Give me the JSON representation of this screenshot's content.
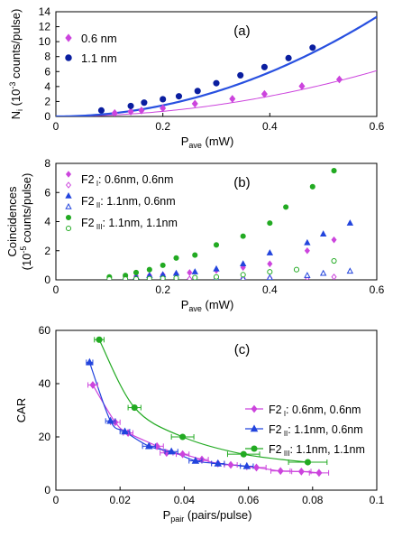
{
  "chart_data": [
    {
      "type": "scatter",
      "panel_label": "(a)",
      "xlabel": "P",
      "xlabel_sub": "ave",
      "xlabel_unit": " (mW)",
      "ylabel": "N",
      "ylabel_sub": "i",
      "ylabel_unit": " (10",
      "ylabel_exp": "-3",
      "ylabel_tail": " counts/pulse)",
      "xlim": [
        0,
        0.6
      ],
      "ylim": [
        0,
        14
      ],
      "xticks": [
        "0",
        "0.2",
        "0.4",
        "0.6"
      ],
      "yticks": [
        "0",
        "2",
        "4",
        "6",
        "8",
        "10",
        "12",
        "14"
      ],
      "legend_position": "top-left",
      "series": [
        {
          "name": "0.6 nm",
          "color": "#cc44dd",
          "marker": "diamond",
          "filled": true,
          "x": [
            0.11,
            0.14,
            0.16,
            0.2,
            0.26,
            0.33,
            0.39,
            0.46,
            0.53
          ],
          "y": [
            0.45,
            0.65,
            0.8,
            1.1,
            1.7,
            2.35,
            3.0,
            4.05,
            4.95
          ],
          "fit": {
            "type": "power",
            "a": 17.0,
            "n": 2.0
          }
        },
        {
          "name": "1.1 nm",
          "color": "#0a1ea0",
          "marker": "circle",
          "filled": true,
          "x": [
            0.085,
            0.14,
            0.165,
            0.2,
            0.23,
            0.265,
            0.3,
            0.345,
            0.39,
            0.435,
            0.48
          ],
          "y": [
            0.8,
            1.4,
            1.85,
            2.3,
            2.7,
            3.4,
            4.45,
            5.5,
            6.6,
            7.8,
            9.2
          ],
          "fit": {
            "type": "power",
            "a": 37.0,
            "n": 2.0,
            "color": "#2850e0"
          }
        }
      ]
    },
    {
      "type": "scatter",
      "panel_label": "(b)",
      "xlabel": "P",
      "xlabel_sub": "ave",
      "xlabel_unit": " (mW)",
      "ylabel": "Coincidences",
      "ylabel2": "(10",
      "ylabel2_exp": "-5",
      "ylabel2_tail": " counts/pulse)",
      "xlim": [
        0,
        0.6
      ],
      "ylim": [
        0,
        8
      ],
      "xticks": [
        "0",
        "0.2",
        "0.4",
        "0.6"
      ],
      "yticks": [
        "0",
        "2",
        "4",
        "6",
        "8"
      ],
      "legend_position": "top-left",
      "series": [
        {
          "name": "F2",
          "name_sub": "I",
          "name_rest": ": 0.6nm, 0.6nm",
          "color": "#cc44dd",
          "marker": "diamond",
          "filled": true,
          "x": [
            0.1,
            0.13,
            0.15,
            0.175,
            0.2,
            0.225,
            0.25,
            0.3,
            0.35,
            0.4,
            0.47,
            0.52
          ],
          "y": [
            0.15,
            0.2,
            0.25,
            0.3,
            0.35,
            0.4,
            0.5,
            0.65,
            0.85,
            1.1,
            2.0,
            2.75
          ]
        },
        {
          "name": "F2",
          "name_sub": "I",
          "name_rest": ": 0.6nm, 0.6nm",
          "color": "#cc44dd",
          "marker": "diamond",
          "filled": false,
          "x": [
            0.1,
            0.13,
            0.15,
            0.175,
            0.2,
            0.225,
            0.25,
            0.3,
            0.35,
            0.4,
            0.47,
            0.52
          ],
          "y": [
            0.05,
            0.05,
            0.05,
            0.05,
            0.05,
            0.05,
            0.06,
            0.08,
            0.1,
            0.12,
            0.15,
            0.2
          ]
        },
        {
          "name": "F2",
          "name_sub": "II",
          "name_rest": ": 1.1nm, 0.6nm",
          "color": "#2244dd",
          "marker": "triangle",
          "filled": true,
          "x": [
            0.1,
            0.13,
            0.15,
            0.175,
            0.2,
            0.225,
            0.26,
            0.3,
            0.35,
            0.4,
            0.47,
            0.5,
            0.55
          ],
          "y": [
            0.1,
            0.15,
            0.2,
            0.3,
            0.35,
            0.45,
            0.55,
            0.75,
            1.1,
            1.85,
            2.55,
            3.15,
            3.9
          ]
        },
        {
          "name": "F2",
          "name_sub": "II",
          "name_rest": ": 1.1nm, 0.6nm",
          "color": "#2244dd",
          "marker": "triangle",
          "filled": false,
          "x": [
            0.1,
            0.13,
            0.15,
            0.175,
            0.2,
            0.225,
            0.26,
            0.3,
            0.35,
            0.4,
            0.47,
            0.5,
            0.55
          ],
          "y": [
            0.05,
            0.05,
            0.05,
            0.05,
            0.06,
            0.06,
            0.07,
            0.08,
            0.1,
            0.15,
            0.3,
            0.45,
            0.6
          ]
        },
        {
          "name": "F2",
          "name_sub": "III",
          "name_rest": ": 1.1nm, 1.1nm",
          "color": "#22aa22",
          "marker": "circle",
          "filled": true,
          "x": [
            0.1,
            0.13,
            0.15,
            0.175,
            0.2,
            0.225,
            0.26,
            0.3,
            0.35,
            0.4,
            0.43,
            0.48,
            0.52
          ],
          "y": [
            0.2,
            0.3,
            0.5,
            0.7,
            1.0,
            1.5,
            1.7,
            2.4,
            3.0,
            3.9,
            5.0,
            6.4,
            7.5
          ]
        },
        {
          "name": "F2",
          "name_sub": "III",
          "name_rest": ": 1.1nm, 1.1nm",
          "color": "#22aa22",
          "marker": "circle",
          "filled": false,
          "x": [
            0.1,
            0.13,
            0.15,
            0.175,
            0.2,
            0.225,
            0.26,
            0.3,
            0.35,
            0.4,
            0.45,
            0.52
          ],
          "y": [
            0.05,
            0.05,
            0.06,
            0.08,
            0.1,
            0.12,
            0.15,
            0.2,
            0.35,
            0.55,
            0.7,
            1.3
          ]
        }
      ],
      "legend": [
        {
          "series": 0,
          "name": "F2",
          "sub": "I",
          "rest": ": 0.6nm, 0.6nm"
        },
        {
          "series": 1
        },
        {
          "series": 2,
          "name": "F2",
          "sub": "II",
          "rest": ": 1.1nm, 0.6nm"
        },
        {
          "series": 3
        },
        {
          "series": 4,
          "name": "F2",
          "sub": "III",
          "rest": ": 1.1nm, 1.1nm"
        },
        {
          "series": 5
        }
      ]
    },
    {
      "type": "scatter",
      "panel_label": "(c)",
      "xlabel": "P",
      "xlabel_sub": "pair",
      "xlabel_unit": " (pairs/pulse)",
      "ylabel": "CAR",
      "xlim": [
        0,
        0.1
      ],
      "ylim": [
        0,
        60
      ],
      "xticks": [
        "0",
        "0.02",
        "0.04",
        "0.06",
        "0.08",
        "0.1"
      ],
      "yticks": [
        "0",
        "20",
        "40",
        "60"
      ],
      "legend_position": "right",
      "series": [
        {
          "name": "F2",
          "name_sub": "I",
          "name_rest": ": 0.6nm, 0.6nm",
          "color": "#cc44dd",
          "marker": "diamond",
          "filled": true,
          "x": [
            0.0115,
            0.0185,
            0.0225,
            0.0315,
            0.0345,
            0.0395,
            0.0455,
            0.0505,
            0.0545,
            0.0625,
            0.07,
            0.0765,
            0.082
          ],
          "y": [
            39.5,
            25.5,
            21.5,
            16.5,
            14.0,
            13.5,
            11.5,
            10.0,
            9.5,
            8.5,
            7.2,
            7.0,
            6.5
          ],
          "xerr": [
            0.0015,
            0.0015,
            0.0015,
            0.002,
            0.002,
            0.002,
            0.002,
            0.002,
            0.002,
            0.003,
            0.003,
            0.003,
            0.003
          ]
        },
        {
          "name": "F2",
          "name_sub": "II",
          "name_rest": ": 1.1nm, 0.6nm",
          "color": "#2244dd",
          "marker": "triangle",
          "filled": true,
          "x": [
            0.0105,
            0.017,
            0.0215,
            0.029,
            0.036,
            0.0435,
            0.0505,
            0.0595
          ],
          "y": [
            48.0,
            26.0,
            22.0,
            16.5,
            14.5,
            11.0,
            10.0,
            9.0
          ],
          "xerr": [
            0.001,
            0.0015,
            0.0015,
            0.002,
            0.002,
            0.002,
            0.002,
            0.002
          ]
        },
        {
          "name": "F2",
          "name_sub": "III",
          "name_rest": ": 1.1nm, 1.1nm",
          "color": "#22aa22",
          "marker": "circle",
          "filled": true,
          "x": [
            0.0135,
            0.0245,
            0.0395,
            0.0585,
            0.0785
          ],
          "y": [
            56.5,
            31.0,
            20.0,
            13.5,
            10.5
          ],
          "xerr": [
            0.0015,
            0.002,
            0.0035,
            0.005,
            0.006
          ]
        }
      ]
    }
  ]
}
